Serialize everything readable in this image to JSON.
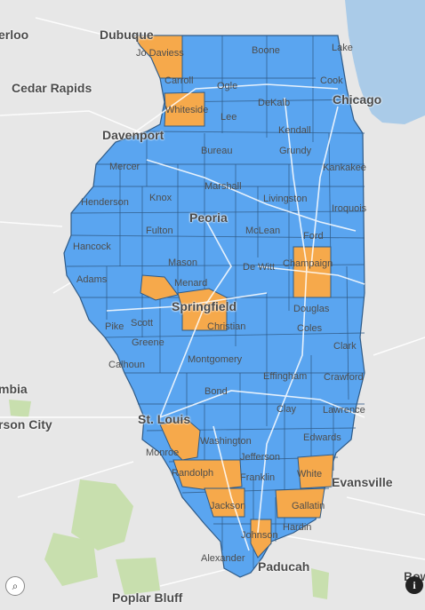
{
  "colors": {
    "background": "#e7e7e7",
    "water": "#aacbe8",
    "park": "#c8dfae",
    "county_default": "#5aa5f0",
    "county_highlight": "#f6a94b",
    "county_border": "#2f5a86",
    "road": "#ffffff"
  },
  "cities": {
    "waterloo": "erloo",
    "dubuque": "Dubuque",
    "cedar_rapids": "Cedar Rapids",
    "davenport": "Davenport",
    "peoria": "Peoria",
    "springfield": "Springfield",
    "chicago": "Chicago",
    "columbia": "mbia",
    "jefferson_city": "rson City",
    "st_louis": "St. Louis",
    "evansville": "Evansville",
    "paducah": "Paducah",
    "poplar_bluff": "Poplar Bluff",
    "bowling": "Bow"
  },
  "counties": {
    "jo_daviess": "Jo Daviess",
    "boone": "Boone",
    "lake": "Lake",
    "carroll": "Carroll",
    "ogle": "Ogle",
    "cook": "Cook",
    "whiteside": "Whiteside",
    "lee": "Lee",
    "dekalb": "DeKalb",
    "kendall": "Kendall",
    "bureau": "Bureau",
    "grundy": "Grundy",
    "mercer": "Mercer",
    "kankakee": "Kankakee",
    "marshall": "Marshall",
    "henderson": "Henderson",
    "knox": "Knox",
    "livingston": "Livingston",
    "iroquois": "Iroquois",
    "fulton": "Fulton",
    "mclean": "McLean",
    "ford": "Ford",
    "hancock": "Hancock",
    "mason": "Mason",
    "dewitt": "De Witt",
    "champaign": "Champaign",
    "adams": "Adams",
    "menard": "Menard",
    "douglas": "Douglas",
    "christian": "Christian",
    "pike": "Pike",
    "scott": "Scott",
    "coles": "Coles",
    "greene": "Greene",
    "clark": "Clark",
    "calhoun": "Calhoun",
    "montgomery": "Montgomery",
    "effingham": "Effingham",
    "crawford": "Crawford",
    "bond": "Bond",
    "clay": "Clay",
    "lawrence": "Lawrence",
    "washington": "Washington",
    "monroe": "Monroe",
    "edwards": "Edwards",
    "jefferson": "Jefferson",
    "randolph": "Randolph",
    "white": "White",
    "franklin": "Franklin",
    "gallatin": "Gallatin",
    "jackson": "Jackson",
    "johnson": "Johnson",
    "hardin": "Hardin",
    "alexander": "Alexander"
  },
  "controls": {
    "zoom_icon": "magnifier-icon",
    "info_icon": "info-icon"
  }
}
